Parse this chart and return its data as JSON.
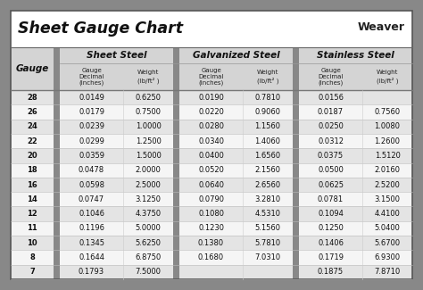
{
  "title": "Sheet Gauge Chart",
  "bg_outer": "#888888",
  "bg_white": "#ffffff",
  "bg_header_row": "#d4d4d4",
  "bg_row_odd": "#e4e4e4",
  "bg_row_even": "#f5f5f5",
  "bg_gray_sep": "#888888",
  "col_section_headers": [
    "Sheet Steel",
    "Galvanized Steel",
    "Stainless Steel"
  ],
  "gauges": [
    28,
    26,
    24,
    22,
    20,
    18,
    16,
    14,
    12,
    11,
    10,
    8,
    7
  ],
  "sheet_steel": [
    [
      "0.0149",
      "0.6250"
    ],
    [
      "0.0179",
      "0.7500"
    ],
    [
      "0.0239",
      "1.0000"
    ],
    [
      "0.0299",
      "1.2500"
    ],
    [
      "0.0359",
      "1.5000"
    ],
    [
      "0.0478",
      "2.0000"
    ],
    [
      "0.0598",
      "2.5000"
    ],
    [
      "0.0747",
      "3.1250"
    ],
    [
      "0.1046",
      "4.3750"
    ],
    [
      "0.1196",
      "5.0000"
    ],
    [
      "0.1345",
      "5.6250"
    ],
    [
      "0.1644",
      "6.8750"
    ],
    [
      "0.1793",
      "7.5000"
    ]
  ],
  "galvanized_steel": [
    [
      "0.0190",
      "0.7810"
    ],
    [
      "0.0220",
      "0.9060"
    ],
    [
      "0.0280",
      "1.1560"
    ],
    [
      "0.0340",
      "1.4060"
    ],
    [
      "0.0400",
      "1.6560"
    ],
    [
      "0.0520",
      "2.1560"
    ],
    [
      "0.0640",
      "2.6560"
    ],
    [
      "0.0790",
      "3.2810"
    ],
    [
      "0.1080",
      "4.5310"
    ],
    [
      "0.1230",
      "5.1560"
    ],
    [
      "0.1380",
      "5.7810"
    ],
    [
      "0.1680",
      "7.0310"
    ],
    [
      "",
      ""
    ]
  ],
  "stainless_steel": [
    [
      "0.0156",
      ""
    ],
    [
      "0.0187",
      "0.7560"
    ],
    [
      "0.0250",
      "1.0080"
    ],
    [
      "0.0312",
      "1.2600"
    ],
    [
      "0.0375",
      "1.5120"
    ],
    [
      "0.0500",
      "2.0160"
    ],
    [
      "0.0625",
      "2.5200"
    ],
    [
      "0.0781",
      "3.1500"
    ],
    [
      "0.1094",
      "4.4100"
    ],
    [
      "0.1250",
      "5.0400"
    ],
    [
      "0.1406",
      "5.6700"
    ],
    [
      "0.1719",
      "6.9300"
    ],
    [
      "0.1875",
      "7.8710"
    ]
  ],
  "fig_w": 4.74,
  "fig_h": 3.25,
  "dpi": 100
}
